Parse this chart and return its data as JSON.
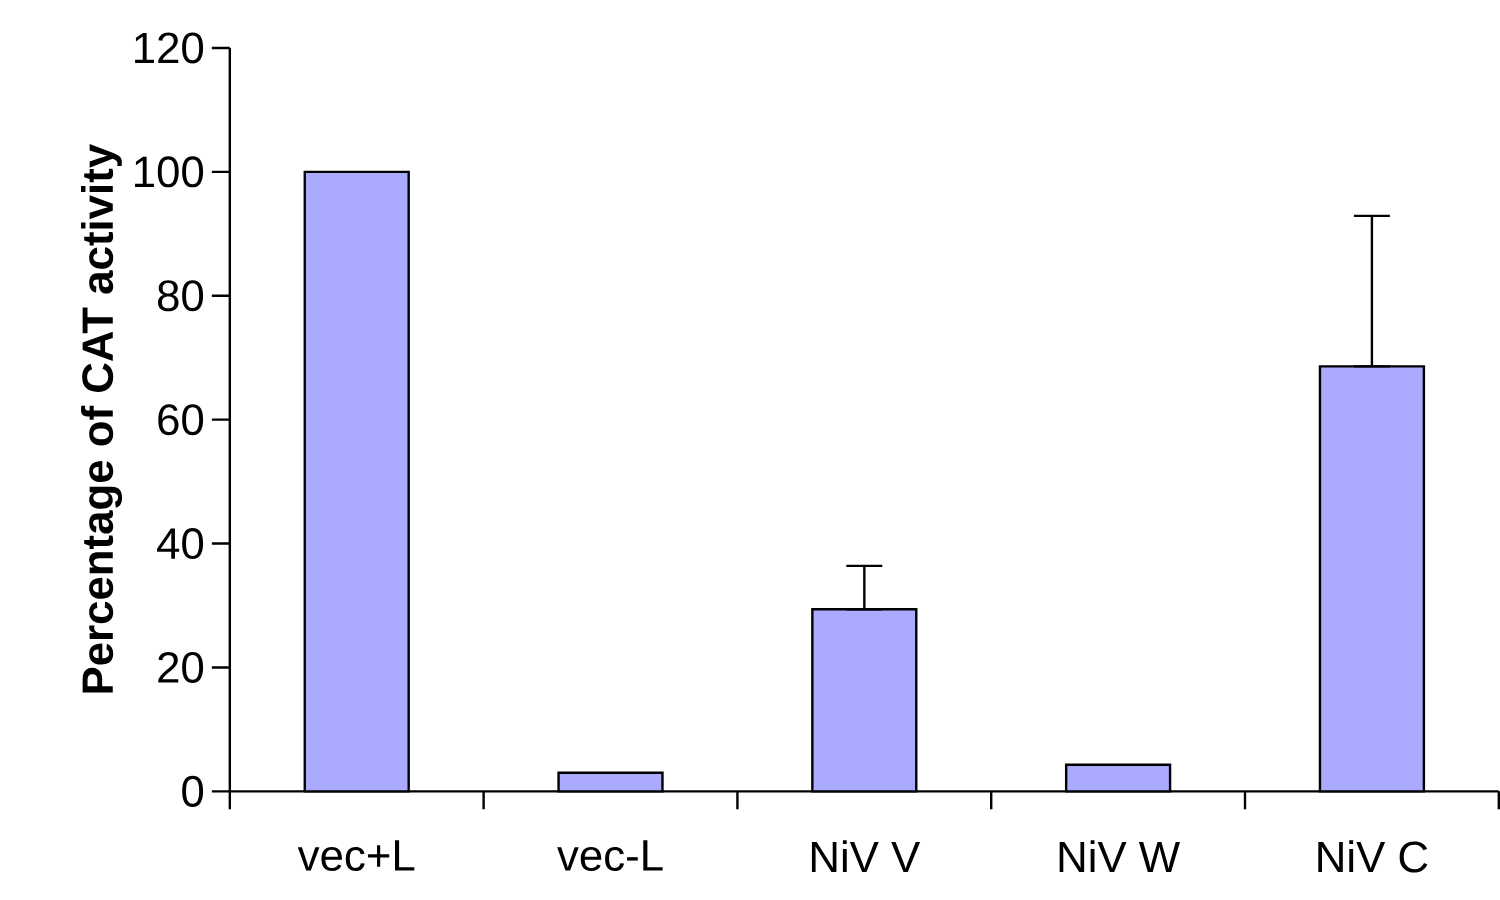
{
  "chart_data": {
    "type": "bar",
    "ylabel": "Percentage of CAT activity",
    "categories": [
      "vec+L",
      "vec-L",
      "NiV V",
      "NiV W",
      "NiV C"
    ],
    "values": [
      100,
      3,
      29.4,
      4.3,
      68.6
    ],
    "errors": [
      null,
      null,
      [
        29.4,
        36.4
      ],
      null,
      [
        68.6,
        92.9
      ]
    ],
    "color": "#aaaaff",
    "ylim": [
      0,
      120
    ],
    "yticks": [
      0,
      20,
      40,
      60,
      80,
      100,
      120
    ]
  }
}
